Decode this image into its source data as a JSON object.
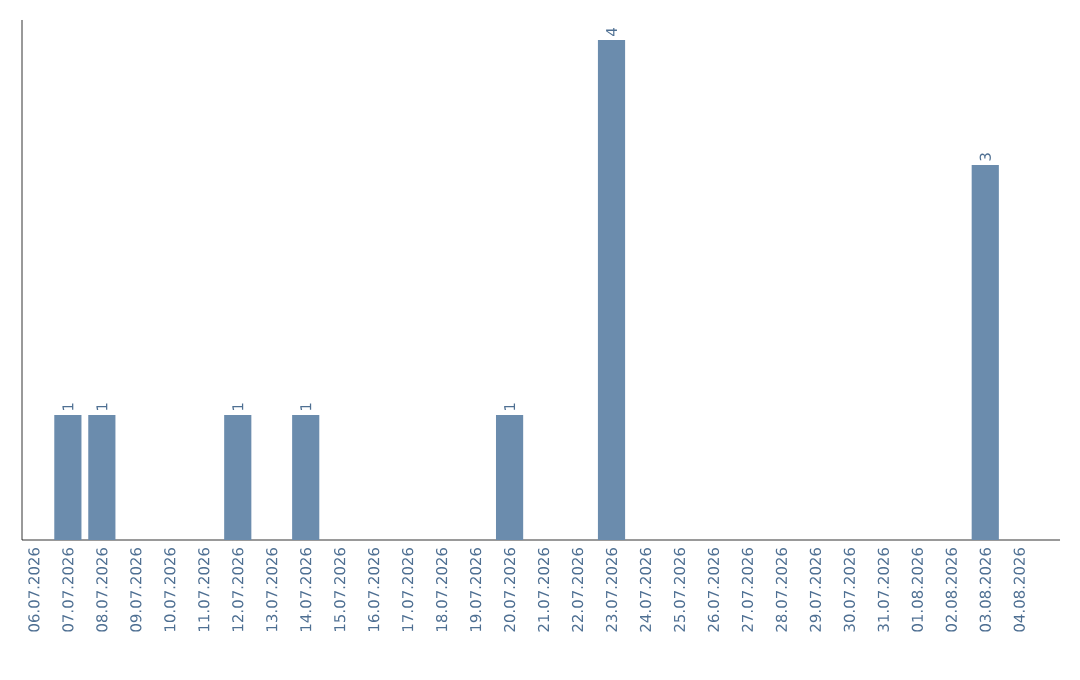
{
  "chart_data": {
    "type": "bar",
    "categories": [
      "06.07.2026",
      "07.07.2026",
      "08.07.2026",
      "09.07.2026",
      "10.07.2026",
      "11.07.2026",
      "12.07.2026",
      "13.07.2026",
      "14.07.2026",
      "15.07.2026",
      "16.07.2026",
      "17.07.2026",
      "18.07.2026",
      "19.07.2026",
      "20.07.2026",
      "21.07.2026",
      "22.07.2026",
      "23.07.2026",
      "24.07.2026",
      "25.07.2026",
      "26.07.2026",
      "27.07.2026",
      "28.07.2026",
      "29.07.2026",
      "30.07.2026",
      "31.07.2026",
      "01.08.2026",
      "02.08.2026",
      "03.08.2026",
      "04.08.2026"
    ],
    "values": [
      0,
      1,
      1,
      0,
      0,
      0,
      1,
      0,
      1,
      0,
      0,
      0,
      0,
      0,
      1,
      0,
      0,
      4,
      0,
      0,
      0,
      0,
      0,
      0,
      0,
      0,
      0,
      0,
      3,
      0
    ],
    "value_labels": [
      null,
      "1",
      "1",
      null,
      null,
      null,
      "1",
      null,
      "1",
      null,
      null,
      null,
      null,
      null,
      "1",
      null,
      null,
      "4",
      null,
      null,
      null,
      null,
      null,
      null,
      null,
      null,
      null,
      null,
      "3",
      null
    ],
    "color": "#6b8cad",
    "ylim": [
      0,
      4.16
    ],
    "tick_labels": "x"
  }
}
